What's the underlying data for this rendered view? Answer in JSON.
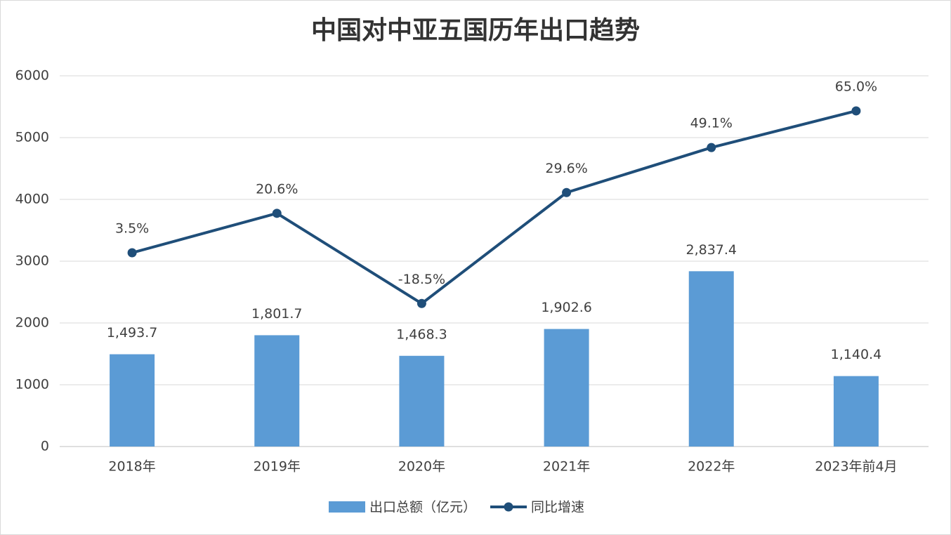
{
  "chart_data": {
    "type": "bar_line",
    "title": "中国对中亚五国历年出口趋势",
    "categories": [
      "2018年",
      "2019年",
      "2020年",
      "2021年",
      "2022年",
      "2023年前4月"
    ],
    "series": [
      {
        "name": "出口总额（亿元）",
        "type": "bar",
        "color": "#5b9bd5",
        "values": [
          1493.7,
          1801.7,
          1468.3,
          1902.6,
          2837.4,
          1140.4
        ],
        "value_labels": [
          "1,493.7",
          "1,801.7",
          "1,468.3",
          "1,902.6",
          "2,837.4",
          "1,140.4"
        ]
      },
      {
        "name": "同比增速",
        "type": "line",
        "color": "#1f4e79",
        "axis": "y2",
        "values": [
          3.5,
          20.6,
          -18.5,
          29.6,
          49.1,
          65.0
        ],
        "value_labels": [
          "3.5%",
          "20.6%",
          "-18.5%",
          "29.6%",
          "49.1%",
          "65.0%"
        ]
      }
    ],
    "ylim": [
      0,
      6000
    ],
    "yticks": [
      0,
      1000,
      2000,
      3000,
      4000,
      5000,
      6000
    ],
    "y2lim": [
      -80.5,
      80.2
    ],
    "grid": true,
    "legend": "bottom"
  }
}
